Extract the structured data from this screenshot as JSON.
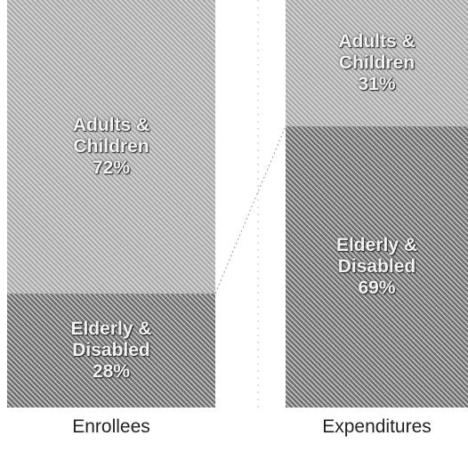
{
  "chart_data": {
    "type": "stacked_bar",
    "categories": [
      "Enrollees",
      "Expenditures"
    ],
    "series": [
      {
        "name": "Elderly & Disabled",
        "color": "#707070",
        "values": [
          28,
          69
        ],
        "value_labels": [
          "28%",
          "69%"
        ]
      },
      {
        "name": "Adults & Children",
        "color": "#ababab",
        "values": [
          72,
          31
        ],
        "value_labels": [
          "72%",
          "31%"
        ]
      }
    ],
    "ylim": [
      0,
      100
    ]
  }
}
